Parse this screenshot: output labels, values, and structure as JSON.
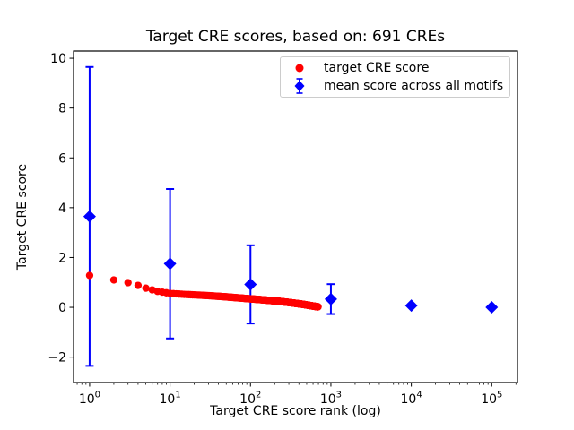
{
  "chart_data": {
    "type": "scatter",
    "title": "Target CRE scores, based on: 691 CREs",
    "xlabel": "Target CRE score rank (log)",
    "ylabel": "Target CRE score",
    "x_scale": "log",
    "xlim": [
      0.631,
      209000
    ],
    "ylim": [
      -3.02,
      10.29
    ],
    "grid": false,
    "legend_position": "upper right",
    "x_ticks": [
      {
        "value": 1,
        "base": "10",
        "exp": "0"
      },
      {
        "value": 10,
        "base": "10",
        "exp": "1"
      },
      {
        "value": 100,
        "base": "10",
        "exp": "2"
      },
      {
        "value": 1000,
        "base": "10",
        "exp": "3"
      },
      {
        "value": 10000,
        "base": "10",
        "exp": "4"
      },
      {
        "value": 100000,
        "base": "10",
        "exp": "5"
      }
    ],
    "y_ticks": [
      {
        "value": -2,
        "label": "−2"
      },
      {
        "value": 0,
        "label": "0"
      },
      {
        "value": 2,
        "label": "2"
      },
      {
        "value": 4,
        "label": "4"
      },
      {
        "value": 6,
        "label": "6"
      },
      {
        "value": 8,
        "label": "8"
      },
      {
        "value": 10,
        "label": "10"
      }
    ],
    "series": [
      {
        "name": "target CRE score",
        "marker": "circle",
        "color": "#ff0000",
        "n_points": 691,
        "anchor_points": {
          "ranks": [
            1,
            2,
            3,
            4,
            5,
            7,
            10,
            15,
            20,
            30,
            50,
            70,
            100,
            150,
            200,
            300,
            450,
            600,
            691
          ],
          "scores": [
            1.28,
            1.1,
            0.99,
            0.88,
            0.77,
            0.64,
            0.56,
            0.52,
            0.5,
            0.47,
            0.42,
            0.38,
            0.34,
            0.295,
            0.26,
            0.195,
            0.12,
            0.05,
            0.02
          ]
        }
      },
      {
        "name": "mean score across all motifs",
        "marker": "diamond",
        "color": "#0000ff",
        "x": [
          1,
          10,
          100,
          1000,
          10000,
          100000
        ],
        "y": [
          3.65,
          1.75,
          0.92,
          0.33,
          0.07,
          0.0
        ],
        "yerr": [
          6.0,
          3.0,
          1.57,
          0.6,
          0.05,
          0.02
        ]
      }
    ]
  }
}
